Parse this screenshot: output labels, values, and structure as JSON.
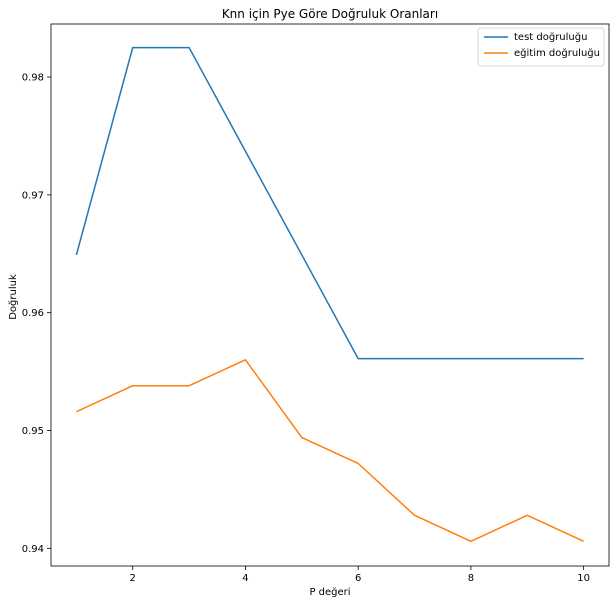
{
  "chart_data": {
    "type": "line",
    "title": "Knn için Pye Göre Doğruluk Oranları",
    "xlabel": "P değeri",
    "ylabel": "Doğruluk",
    "x": [
      1,
      2,
      3,
      4,
      5,
      6,
      7,
      8,
      9,
      10
    ],
    "xlim": [
      0.55,
      10.45
    ],
    "ylim": [
      0.9385,
      0.9845
    ],
    "xticks": [
      2,
      4,
      6,
      8,
      10
    ],
    "yticks": [
      0.94,
      0.95,
      0.96,
      0.97,
      0.98
    ],
    "xtick_labels": [
      "2",
      "4",
      "6",
      "8",
      "10"
    ],
    "ytick_labels": [
      "0.94",
      "0.95",
      "0.96",
      "0.97",
      "0.98"
    ],
    "grid": false,
    "legend_position": "top-right",
    "series": [
      {
        "name": "test doğruluğu",
        "color": "#1f77b4",
        "values": [
          0.9649,
          0.9825,
          0.9825,
          0.9737,
          0.9649,
          0.9561,
          0.9561,
          0.9561,
          0.9561,
          0.9561
        ]
      },
      {
        "name": "eğitim doğruluğu",
        "color": "#ff7f0e",
        "values": [
          0.9516,
          0.9538,
          0.9538,
          0.956,
          0.9494,
          0.9472,
          0.9428,
          0.9406,
          0.9428,
          0.9406
        ]
      }
    ]
  }
}
